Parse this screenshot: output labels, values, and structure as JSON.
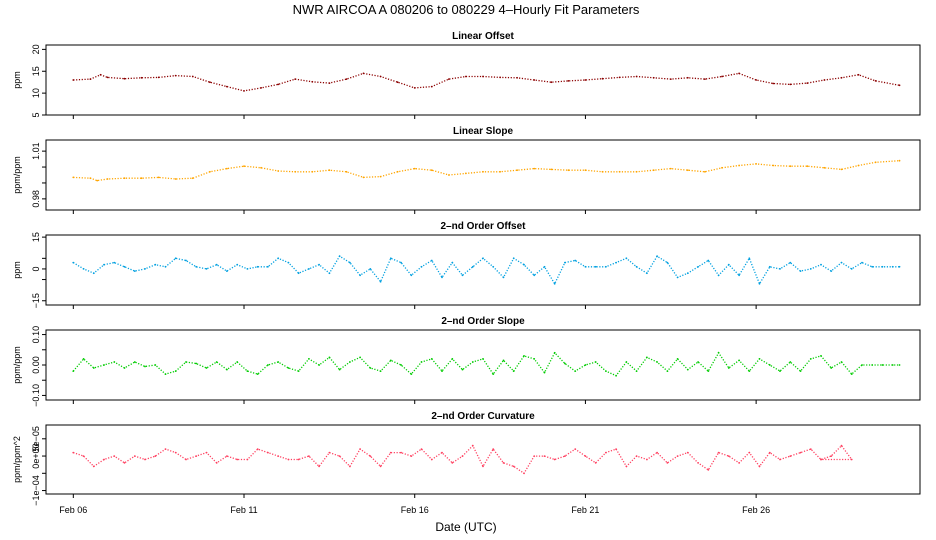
{
  "figure": {
    "title": "NWR   AIRCOA A   080206 to 080229   4–Hourly Fit Parameters",
    "xlabel": "Date (UTC)",
    "x_ticks": [
      {
        "day": 0,
        "label": "Feb 06"
      },
      {
        "day": 5,
        "label": "Feb 11"
      },
      {
        "day": 10,
        "label": "Feb 16"
      },
      {
        "day": 15,
        "label": "Feb 21"
      },
      {
        "day": 20,
        "label": "Feb 26"
      }
    ],
    "xlim": [
      -0.8,
      24.8
    ]
  },
  "chart_data": [
    {
      "type": "line",
      "title": "Linear Offset",
      "ylabel": "ppm",
      "ylim": [
        5,
        21
      ],
      "yticks": [
        5,
        10,
        15,
        20
      ],
      "yticklabels": [
        "5",
        "10",
        "15",
        "20"
      ],
      "color": "#8b0000",
      "series": [
        {
          "name": "Linear Offset",
          "x": [
            0,
            0.5,
            0.8,
            1,
            1.5,
            2,
            2.5,
            3,
            3.5,
            4,
            4.5,
            5,
            5.5,
            6,
            6.5,
            7,
            7.5,
            8,
            8.5,
            9,
            9.5,
            10,
            10.5,
            11,
            11.5,
            12,
            12.5,
            13,
            13.5,
            14,
            14.5,
            15,
            15.5,
            16,
            16.5,
            17,
            17.5,
            18,
            18.5,
            19,
            19.5,
            20,
            20.5,
            21,
            21.5,
            22,
            22.5,
            23,
            23.5,
            24.2
          ],
          "y": [
            13,
            13.2,
            14.2,
            13.6,
            13.3,
            13.5,
            13.6,
            14,
            13.8,
            12.5,
            11.5,
            10.5,
            11.2,
            12,
            13.2,
            12.6,
            12.3,
            13.2,
            14.5,
            13.8,
            12.5,
            11.2,
            11.5,
            13.2,
            13.8,
            13.8,
            13.6,
            13.5,
            13,
            12.5,
            12.8,
            13,
            13.3,
            13.6,
            13.8,
            13.5,
            13.2,
            13.5,
            13.2,
            13.8,
            14.5,
            13,
            12.2,
            12,
            12.3,
            13,
            13.5,
            14.2,
            12.8,
            11.8
          ]
        }
      ]
    },
    {
      "type": "line",
      "title": "Linear Slope",
      "ylabel": "ppm/ppm",
      "ylim": [
        0.973,
        1.017
      ],
      "yticks": [
        0.98,
        0.99,
        1.0,
        1.01
      ],
      "yticklabels": [
        "0.98",
        "",
        "",
        "1.01"
      ],
      "color": "#ffa500",
      "series": [
        {
          "name": "Linear Slope",
          "x": [
            0,
            0.5,
            0.7,
            1,
            1.5,
            2,
            2.5,
            3,
            3.5,
            4,
            4.5,
            5,
            5.5,
            6,
            6.5,
            7,
            7.5,
            8,
            8.5,
            9,
            9.5,
            10,
            10.5,
            11,
            11.5,
            12,
            12.5,
            13,
            13.5,
            14,
            14.5,
            15,
            15.5,
            16,
            16.5,
            17,
            17.5,
            18,
            18.5,
            19,
            19.5,
            20,
            20.5,
            21,
            21.5,
            22,
            22.5,
            23,
            23.5,
            24.2
          ],
          "y": [
            0.9935,
            0.993,
            0.9915,
            0.9925,
            0.993,
            0.993,
            0.9935,
            0.9925,
            0.993,
            0.997,
            0.999,
            1.0005,
            0.9995,
            0.9975,
            0.997,
            0.997,
            0.998,
            0.997,
            0.9935,
            0.994,
            0.997,
            0.999,
            0.998,
            0.995,
            0.996,
            0.997,
            0.997,
            0.998,
            0.999,
            0.9985,
            0.998,
            0.998,
            0.997,
            0.997,
            0.997,
            0.998,
            0.999,
            0.998,
            0.997,
            0.9995,
            1.001,
            1.002,
            1.001,
            1.0005,
            1.0005,
            0.9995,
            0.9985,
            1.001,
            1.003,
            1.004
          ]
        }
      ]
    },
    {
      "type": "line",
      "title": "2–nd Order Offset",
      "ylabel": "ppm",
      "ylim": [
        -17,
        16
      ],
      "yticks": [
        -15,
        -5,
        0,
        5,
        15
      ],
      "yticklabels": [
        "−15",
        "",
        "0",
        "",
        "15"
      ],
      "color": "#00a0e0",
      "series": [
        {
          "name": "2–nd Order Offset",
          "x": [
            0,
            0.3,
            0.6,
            0.9,
            1.2,
            1.5,
            1.8,
            2.1,
            2.4,
            2.7,
            3,
            3.3,
            3.6,
            3.9,
            4.2,
            4.5,
            4.8,
            5.1,
            5.4,
            5.7,
            6,
            6.3,
            6.6,
            6.9,
            7.2,
            7.5,
            7.8,
            8.1,
            8.4,
            8.7,
            9,
            9.3,
            9.6,
            9.9,
            10.2,
            10.5,
            10.8,
            11.1,
            11.4,
            11.7,
            12,
            12.3,
            12.6,
            12.9,
            13.2,
            13.5,
            13.8,
            14.1,
            14.4,
            14.7,
            15,
            15.3,
            15.6,
            15.9,
            16.2,
            16.5,
            16.8,
            17.1,
            17.4,
            17.7,
            18,
            18.3,
            18.6,
            18.9,
            19.2,
            19.5,
            19.8,
            20.1,
            20.4,
            20.7,
            21,
            21.3,
            21.6,
            21.9,
            22.2,
            22.5,
            22.8,
            23.1,
            23.4,
            23.7,
            24,
            24.2
          ],
          "y": [
            3,
            0,
            -2,
            2,
            3,
            1,
            -1,
            0,
            2,
            1,
            5,
            4,
            1,
            0,
            2,
            -1,
            2,
            0,
            1,
            1,
            5,
            3,
            -2,
            0,
            2,
            -2,
            6,
            3,
            -3,
            0,
            -6,
            5,
            3,
            -3,
            1,
            4,
            -4,
            3,
            -3,
            1,
            5,
            1,
            -4,
            5,
            2,
            -3,
            1,
            -7,
            3,
            4,
            1,
            1,
            1,
            3,
            5,
            1,
            -2,
            6,
            3,
            -4,
            -2,
            1,
            4,
            -3,
            2,
            -3,
            5,
            -7,
            1,
            0,
            3,
            -1,
            0,
            2,
            -1,
            3,
            0,
            3,
            1,
            1,
            1,
            1
          ]
        }
      ]
    },
    {
      "type": "line",
      "title": "2–nd Order Slope",
      "ylabel": "ppm/ppm",
      "ylim": [
        -0.115,
        0.115
      ],
      "yticks": [
        -0.1,
        -0.05,
        0.0,
        0.05,
        0.1
      ],
      "yticklabels": [
        "−0.10",
        "",
        "0.00",
        "",
        "0.10"
      ],
      "color": "#00cc00",
      "series": [
        {
          "name": "2–nd Order Slope",
          "x": [
            0,
            0.3,
            0.6,
            0.9,
            1.2,
            1.5,
            1.8,
            2.1,
            2.4,
            2.7,
            3,
            3.3,
            3.6,
            3.9,
            4.2,
            4.5,
            4.8,
            5.1,
            5.4,
            5.7,
            6,
            6.3,
            6.6,
            6.9,
            7.2,
            7.5,
            7.8,
            8.1,
            8.4,
            8.7,
            9,
            9.3,
            9.6,
            9.9,
            10.2,
            10.5,
            10.8,
            11.1,
            11.4,
            11.7,
            12,
            12.3,
            12.6,
            12.9,
            13.2,
            13.5,
            13.8,
            14.1,
            14.4,
            14.7,
            15,
            15.3,
            15.6,
            15.9,
            16.2,
            16.5,
            16.8,
            17.1,
            17.4,
            17.7,
            18,
            18.3,
            18.6,
            18.9,
            19.2,
            19.5,
            19.8,
            20.1,
            20.4,
            20.7,
            21,
            21.3,
            21.6,
            21.9,
            22.2,
            22.5,
            22.8,
            23.1,
            23.4,
            23.7,
            24,
            24.2
          ],
          "y": [
            -0.02,
            0.02,
            -0.01,
            0,
            0.01,
            -0.01,
            0.01,
            -0.005,
            0,
            -0.03,
            -0.02,
            0.01,
            0.005,
            -0.01,
            0.01,
            -0.015,
            0.01,
            -0.02,
            -0.03,
            0,
            0.01,
            -0.01,
            -0.02,
            0.02,
            0,
            0.025,
            -0.015,
            0.01,
            0.025,
            -0.01,
            -0.02,
            0.015,
            0,
            -0.03,
            0.01,
            0.02,
            -0.02,
            0.02,
            -0.015,
            0.01,
            0.02,
            -0.03,
            0.015,
            -0.02,
            0.03,
            0.02,
            -0.025,
            0.04,
            0.005,
            -0.02,
            0,
            0.01,
            -0.02,
            -0.035,
            0.01,
            -0.02,
            0.025,
            0.01,
            -0.02,
            0.02,
            -0.015,
            0.01,
            -0.02,
            0.04,
            -0.01,
            0.015,
            -0.02,
            0.02,
            0,
            -0.02,
            0.01,
            -0.02,
            0.02,
            0.03,
            -0.01,
            0.01,
            -0.03,
            0,
            0,
            0,
            0,
            0
          ]
        }
      ]
    },
    {
      "type": "line",
      "title": "2–nd Order Curvature",
      "ylabel": "ppm/ppm^2",
      "ylim": [
        -0.00011,
        9e-05
      ],
      "yticks": [
        -0.0001,
        -5e-05,
        0.0,
        5e-05
      ],
      "yticklabels": [
        "−1e−04",
        "",
        "0e+00",
        "5e−05"
      ],
      "color": "#ff4060",
      "series": [
        {
          "name": "2–nd Order Curvature",
          "x": [
            0,
            0.3,
            0.6,
            0.9,
            1.2,
            1.5,
            1.8,
            2.1,
            2.4,
            2.7,
            3,
            3.3,
            3.6,
            3.9,
            4.2,
            4.5,
            4.8,
            5.1,
            5.4,
            5.7,
            6,
            6.3,
            6.6,
            6.9,
            7.2,
            7.5,
            7.8,
            8.1,
            8.4,
            8.7,
            9,
            9.3,
            9.6,
            9.9,
            10.2,
            10.5,
            10.8,
            11.1,
            11.4,
            11.7,
            12,
            12.3,
            12.6,
            12.9,
            13.2,
            13.5,
            13.8,
            14.1,
            14.4,
            14.7,
            15,
            15.3,
            15.6,
            15.9,
            16.2,
            16.5,
            16.8,
            17.1,
            17.4,
            17.7,
            18,
            18.3,
            18.6,
            18.9,
            19.2,
            19.5,
            19.8,
            20.1,
            20.4,
            20.7,
            21,
            21.3,
            21.6,
            21.9,
            22.2,
            22.5,
            22.8,
            21.9
          ],
          "y": [
            1e-05,
            0,
            -3e-05,
            -1e-05,
            0,
            -2e-05,
            0,
            -1e-05,
            0,
            2e-05,
            1e-05,
            -1e-05,
            0,
            1e-05,
            -2e-05,
            0,
            -1e-05,
            -1e-05,
            2e-05,
            1e-05,
            0,
            -1e-05,
            -1e-05,
            0,
            -3e-05,
            1e-05,
            0,
            -3e-05,
            2e-05,
            0,
            -3e-05,
            1e-05,
            1e-05,
            0,
            2e-05,
            -1e-05,
            1e-05,
            -2e-05,
            0,
            3e-05,
            -3e-05,
            2e-05,
            -2e-05,
            -3e-05,
            -5e-05,
            0,
            0,
            -1e-05,
            0,
            2e-05,
            0,
            -2e-05,
            1e-05,
            2e-05,
            -3e-05,
            0,
            -1e-05,
            1e-05,
            -2e-05,
            0,
            1e-05,
            -2e-05,
            -4e-05,
            1e-05,
            0,
            -2e-05,
            1e-05,
            -3e-05,
            1e-05,
            -1e-05,
            0,
            1e-05,
            2e-05,
            -1e-05,
            0,
            3e-05,
            -1e-05,
            -1e-05
          ]
        }
      ]
    }
  ]
}
